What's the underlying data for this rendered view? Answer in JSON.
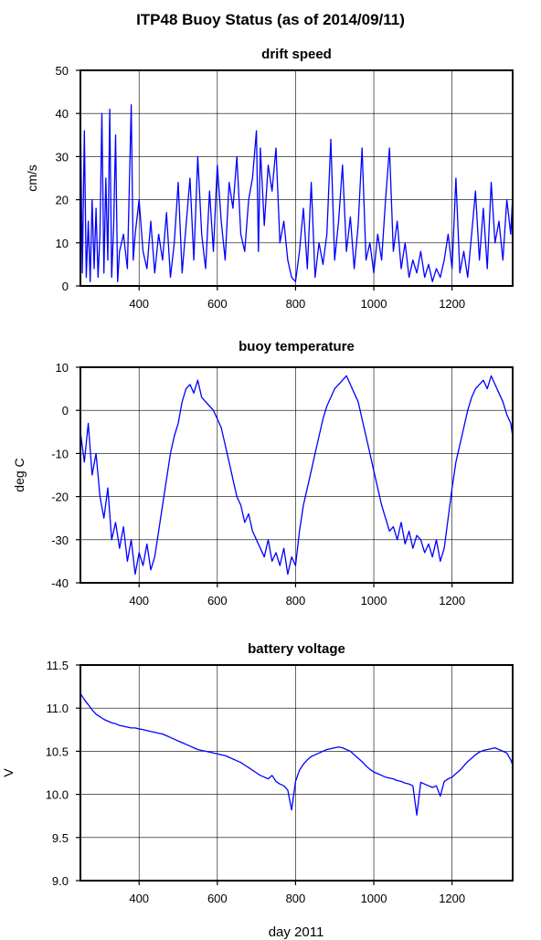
{
  "figure": {
    "title": "ITP48 Buoy Status (as of 2014/09/11)",
    "xlabel": "day 2011"
  },
  "colors": {
    "line": "#0000ff",
    "grid": "#000000",
    "frame": "#000000"
  },
  "chart_data": [
    {
      "type": "line",
      "title": "drift speed",
      "ylabel": "cm/s",
      "xlim": [
        250,
        1355
      ],
      "ylim": [
        0,
        50
      ],
      "xticks": [
        400,
        600,
        800,
        1000,
        1200
      ],
      "yticks": [
        0,
        10,
        20,
        30,
        40,
        50
      ],
      "grid": true,
      "series": [
        {
          "x": [
            250,
            255,
            260,
            265,
            270,
            275,
            280,
            285,
            290,
            295,
            300,
            305,
            310,
            315,
            320,
            325,
            330,
            335,
            340,
            345,
            350,
            360,
            370,
            380,
            385,
            390,
            400,
            410,
            420,
            430,
            440,
            450,
            460,
            470,
            480,
            490,
            500,
            510,
            520,
            530,
            540,
            550,
            560,
            570,
            580,
            590,
            600,
            610,
            620,
            630,
            640,
            650,
            660,
            670,
            680,
            690,
            700,
            705,
            710,
            720,
            730,
            740,
            750,
            760,
            770,
            780,
            790,
            800,
            810,
            820,
            830,
            840,
            850,
            860,
            870,
            880,
            890,
            900,
            910,
            920,
            930,
            940,
            950,
            960,
            970,
            980,
            990,
            1000,
            1010,
            1020,
            1030,
            1040,
            1050,
            1060,
            1070,
            1080,
            1090,
            1100,
            1110,
            1120,
            1130,
            1140,
            1150,
            1160,
            1170,
            1180,
            1190,
            1200,
            1210,
            1220,
            1230,
            1240,
            1250,
            1260,
            1270,
            1280,
            1290,
            1300,
            1310,
            1320,
            1330,
            1340,
            1350,
            1355
          ],
          "y": [
            40,
            3,
            36,
            2,
            15,
            1,
            20,
            4,
            18,
            2,
            12,
            40,
            3,
            25,
            6,
            41,
            2,
            14,
            35,
            1,
            8,
            12,
            4,
            42,
            6,
            12,
            20,
            8,
            4,
            15,
            3,
            12,
            6,
            17,
            2,
            10,
            24,
            3,
            14,
            25,
            6,
            30,
            12,
            4,
            22,
            8,
            28,
            15,
            6,
            24,
            18,
            30,
            12,
            8,
            20,
            25,
            36,
            8,
            32,
            14,
            28,
            22,
            32,
            10,
            15,
            6,
            2,
            1,
            8,
            18,
            4,
            24,
            2,
            10,
            5,
            12,
            34,
            6,
            15,
            28,
            8,
            16,
            4,
            14,
            32,
            6,
            10,
            3,
            12,
            6,
            20,
            32,
            8,
            15,
            4,
            10,
            2,
            6,
            3,
            8,
            2,
            5,
            1,
            4,
            2,
            6,
            12,
            4,
            25,
            3,
            8,
            2,
            12,
            22,
            6,
            18,
            4,
            24,
            10,
            15,
            6,
            20,
            12,
            21
          ]
        }
      ]
    },
    {
      "type": "line",
      "title": "buoy temperature",
      "ylabel": "deg C",
      "xlim": [
        250,
        1355
      ],
      "ylim": [
        -40,
        10
      ],
      "xticks": [
        400,
        600,
        800,
        1000,
        1200
      ],
      "yticks": [
        -40,
        -30,
        -20,
        -10,
        0,
        10
      ],
      "grid": true,
      "series": [
        {
          "x": [
            250,
            260,
            270,
            280,
            290,
            300,
            310,
            320,
            330,
            340,
            350,
            360,
            370,
            380,
            390,
            400,
            410,
            420,
            430,
            440,
            450,
            460,
            470,
            480,
            490,
            500,
            510,
            520,
            530,
            540,
            550,
            560,
            570,
            580,
            590,
            600,
            610,
            620,
            630,
            640,
            650,
            660,
            670,
            680,
            690,
            700,
            710,
            720,
            730,
            740,
            750,
            760,
            770,
            780,
            790,
            800,
            810,
            820,
            830,
            840,
            850,
            860,
            870,
            880,
            890,
            900,
            910,
            920,
            930,
            940,
            950,
            960,
            970,
            980,
            990,
            1000,
            1010,
            1020,
            1030,
            1040,
            1050,
            1060,
            1070,
            1080,
            1090,
            1100,
            1110,
            1120,
            1130,
            1140,
            1150,
            1160,
            1170,
            1180,
            1190,
            1200,
            1210,
            1220,
            1230,
            1240,
            1250,
            1260,
            1270,
            1280,
            1290,
            1300,
            1310,
            1320,
            1330,
            1340,
            1350,
            1355
          ],
          "y": [
            -5,
            -12,
            -3,
            -15,
            -10,
            -20,
            -25,
            -18,
            -30,
            -26,
            -32,
            -27,
            -35,
            -30,
            -38,
            -33,
            -36,
            -31,
            -37,
            -34,
            -28,
            -22,
            -16,
            -10,
            -6,
            -3,
            2,
            5,
            6,
            4,
            7,
            3,
            2,
            1,
            0,
            -2,
            -4,
            -8,
            -12,
            -16,
            -20,
            -22,
            -26,
            -24,
            -28,
            -30,
            -32,
            -34,
            -30,
            -35,
            -33,
            -36,
            -32,
            -38,
            -34,
            -36,
            -28,
            -22,
            -18,
            -14,
            -10,
            -6,
            -2,
            1,
            3,
            5,
            6,
            7,
            8,
            6,
            4,
            2,
            -2,
            -6,
            -10,
            -14,
            -18,
            -22,
            -25,
            -28,
            -27,
            -30,
            -26,
            -31,
            -28,
            -32,
            -29,
            -30,
            -33,
            -31,
            -34,
            -30,
            -35,
            -32,
            -25,
            -18,
            -12,
            -8,
            -4,
            0,
            3,
            5,
            6,
            7,
            5,
            8,
            6,
            4,
            2,
            -1,
            -3,
            -6
          ]
        }
      ]
    },
    {
      "type": "line",
      "title": "battery voltage",
      "ylabel": "V",
      "xlim": [
        250,
        1355
      ],
      "ylim": [
        9.0,
        11.5
      ],
      "xticks": [
        400,
        600,
        800,
        1000,
        1200
      ],
      "yticks": [
        9.0,
        9.5,
        10.0,
        10.5,
        11.0,
        11.5
      ],
      "ytick_labels": [
        "9.0",
        "9.5",
        "10.0",
        "10.5",
        "11.0",
        "11.5"
      ],
      "grid": true,
      "series": [
        {
          "x": [
            250,
            260,
            270,
            280,
            290,
            300,
            310,
            320,
            330,
            340,
            350,
            360,
            370,
            380,
            390,
            400,
            410,
            420,
            430,
            440,
            450,
            460,
            470,
            480,
            490,
            500,
            510,
            520,
            530,
            540,
            550,
            560,
            570,
            580,
            590,
            600,
            610,
            620,
            630,
            640,
            650,
            660,
            670,
            680,
            690,
            700,
            710,
            720,
            730,
            740,
            750,
            760,
            770,
            780,
            790,
            800,
            810,
            820,
            830,
            840,
            850,
            860,
            870,
            880,
            890,
            900,
            910,
            920,
            930,
            940,
            950,
            960,
            970,
            980,
            990,
            1000,
            1010,
            1020,
            1030,
            1040,
            1050,
            1060,
            1070,
            1080,
            1090,
            1100,
            1110,
            1120,
            1130,
            1140,
            1150,
            1160,
            1170,
            1180,
            1190,
            1200,
            1210,
            1220,
            1230,
            1240,
            1250,
            1260,
            1270,
            1280,
            1290,
            1300,
            1310,
            1320,
            1330,
            1340,
            1350,
            1355
          ],
          "y": [
            11.17,
            11.1,
            11.04,
            10.98,
            10.93,
            10.9,
            10.87,
            10.85,
            10.83,
            10.82,
            10.8,
            10.79,
            10.78,
            10.77,
            10.77,
            10.76,
            10.75,
            10.74,
            10.73,
            10.72,
            10.71,
            10.7,
            10.68,
            10.66,
            10.64,
            10.62,
            10.6,
            10.58,
            10.56,
            10.54,
            10.52,
            10.51,
            10.5,
            10.49,
            10.48,
            10.47,
            10.46,
            10.45,
            10.43,
            10.41,
            10.39,
            10.37,
            10.34,
            10.31,
            10.28,
            10.25,
            10.22,
            10.2,
            10.18,
            10.22,
            10.15,
            10.12,
            10.1,
            10.05,
            9.82,
            10.15,
            10.28,
            10.35,
            10.4,
            10.44,
            10.46,
            10.48,
            10.5,
            10.52,
            10.53,
            10.54,
            10.55,
            10.54,
            10.52,
            10.5,
            10.46,
            10.42,
            10.38,
            10.33,
            10.29,
            10.26,
            10.24,
            10.22,
            10.2,
            10.19,
            10.18,
            10.16,
            10.15,
            10.13,
            10.12,
            10.1,
            9.76,
            10.14,
            10.12,
            10.1,
            10.08,
            10.1,
            9.98,
            10.15,
            10.18,
            10.2,
            10.24,
            10.28,
            10.33,
            10.38,
            10.42,
            10.46,
            10.49,
            10.51,
            10.52,
            10.53,
            10.54,
            10.52,
            10.5,
            10.48,
            10.4,
            10.34
          ]
        }
      ]
    }
  ]
}
